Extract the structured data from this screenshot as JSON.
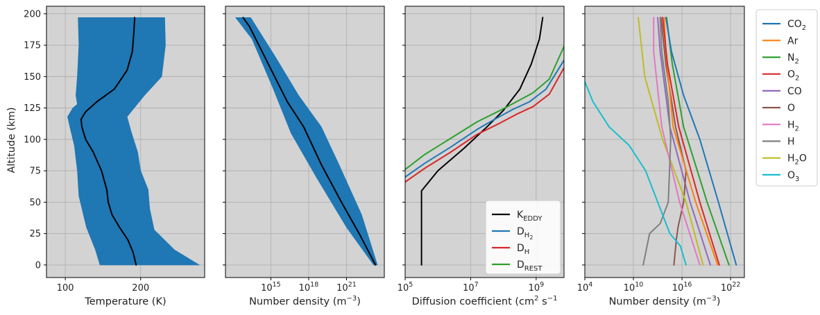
{
  "colors": {
    "blue": "#1f77b4",
    "orange": "#ff7f0e",
    "green": "#2ca02c",
    "red": "#d62728",
    "purple": "#9467bd",
    "brown": "#8c564b",
    "pink": "#e377c2",
    "gray": "#7f7f7f",
    "olive": "#bcbd22",
    "cyan": "#17becf",
    "black": "#000000",
    "panel_bg": "#d3d3d3",
    "grid": "#b0b0b0"
  },
  "chart_data": [
    {
      "type": "line",
      "xlabel": "Temperature (K)",
      "ylabel": "Altitude (km)",
      "xlim": [
        75,
        285
      ],
      "ylim": [
        -10,
        206
      ],
      "xticks": [
        {
          "v": 100,
          "label": "100"
        },
        {
          "v": 200,
          "label": "200"
        }
      ],
      "yticks": [
        {
          "v": 0,
          "label": "0"
        },
        {
          "v": 25,
          "label": "25"
        },
        {
          "v": 50,
          "label": "50"
        },
        {
          "v": 75,
          "label": "75"
        },
        {
          "v": 100,
          "label": "100"
        },
        {
          "v": 125,
          "label": "125"
        },
        {
          "v": 150,
          "label": "150"
        },
        {
          "v": 175,
          "label": "175"
        },
        {
          "v": 200,
          "label": "200"
        }
      ],
      "grid": true,
      "ensemble_envelope": {
        "color": "blue",
        "left": [
          [
            146,
            0
          ],
          [
            140,
            12
          ],
          [
            128,
            30
          ],
          [
            118,
            55
          ],
          [
            116,
            75
          ],
          [
            112,
            95
          ],
          [
            106,
            110
          ],
          [
            103,
            118
          ],
          [
            110,
            125
          ],
          [
            116,
            128
          ],
          [
            114,
            135
          ],
          [
            116,
            150
          ],
          [
            118,
            175
          ],
          [
            117,
            197
          ]
        ],
        "right": [
          [
            278,
            0
          ],
          [
            245,
            12
          ],
          [
            218,
            28
          ],
          [
            212,
            45
          ],
          [
            210,
            60
          ],
          [
            200,
            75
          ],
          [
            196,
            90
          ],
          [
            188,
            105
          ],
          [
            182,
            118
          ],
          [
            205,
            135
          ],
          [
            228,
            150
          ],
          [
            233,
            175
          ],
          [
            232,
            197
          ]
        ]
      },
      "series": [
        {
          "color": "black",
          "x": [
            194,
            190,
            183,
            172,
            162,
            157,
            155,
            148,
            137,
            127,
            122,
            121,
            127,
            142,
            165,
            182,
            189,
            191,
            192,
            192
          ],
          "y": [
            0,
            10,
            20,
            30,
            40,
            50,
            60,
            75,
            90,
            100,
            110,
            116,
            122,
            130,
            140,
            155,
            170,
            185,
            195,
            197
          ]
        }
      ]
    },
    {
      "type": "line",
      "xlabel": "Number density (m⁻³)",
      "xscale": "log",
      "xlim": [
        11.4,
        24.0
      ],
      "ylim": [
        -10,
        206
      ],
      "xticks": [
        {
          "v": 15,
          "base": "10",
          "exp": "15"
        },
        {
          "v": 18,
          "base": "10",
          "exp": "18"
        },
        {
          "v": 21,
          "base": "10",
          "exp": "21"
        }
      ],
      "grid": true,
      "ensemble_envelope": {
        "color": "blue",
        "left": [
          [
            23.15,
            0
          ],
          [
            21.0,
            30
          ],
          [
            18.6,
            70
          ],
          [
            16.6,
            105
          ],
          [
            15.2,
            140
          ],
          [
            13.5,
            180
          ],
          [
            12.2,
            197
          ]
        ],
        "right": [
          [
            23.45,
            0
          ],
          [
            22.2,
            40
          ],
          [
            20.4,
            80
          ],
          [
            19.0,
            110
          ],
          [
            17.2,
            135
          ],
          [
            15.4,
            165
          ],
          [
            13.4,
            197
          ]
        ]
      },
      "series": [
        {
          "color": "black",
          "x": [
            23.3,
            22.0,
            20.6,
            19.0,
            17.6,
            16.3,
            15.3,
            14.3,
            13.3,
            12.8
          ],
          "y": [
            0,
            25,
            50,
            80,
            110,
            130,
            150,
            170,
            190,
            197
          ]
        }
      ]
    },
    {
      "type": "line",
      "xlabel": "Diffusion coefficient (cm² s⁻¹",
      "xscale": "log",
      "xlim": [
        5,
        9.85
      ],
      "ylim": [
        -10,
        206
      ],
      "xticks": [
        {
          "v": 5,
          "base": "10",
          "exp": "5"
        },
        {
          "v": 7,
          "base": "10",
          "exp": "7"
        },
        {
          "v": 9,
          "base": "10",
          "exp": "9"
        }
      ],
      "grid": true,
      "legend": {
        "position": "lower-right",
        "entries": [
          {
            "color": "black",
            "text": "K",
            "sub": "EDDY"
          },
          {
            "color": "blue",
            "text": "D",
            "sub": "H",
            "subsub": "2"
          },
          {
            "color": "red",
            "text": "D",
            "sub": "H"
          },
          {
            "color": "green",
            "text": "D",
            "sub": "REST"
          }
        ]
      },
      "series": [
        {
          "color": "black",
          "label": "KEDDY",
          "x": [
            5.5,
            5.5,
            5.5,
            6.0,
            6.8,
            7.5,
            8.0,
            8.5,
            8.85,
            9.1,
            9.2
          ],
          "y": [
            0,
            30,
            59,
            75,
            93,
            110,
            123,
            140,
            160,
            180,
            197
          ]
        },
        {
          "color": "blue",
          "label": "DH2",
          "x": [
            5.0,
            5.6,
            6.4,
            7.2,
            7.8,
            8.3,
            8.8,
            9.3,
            9.85
          ],
          "y": [
            70,
            81,
            94,
            108,
            117,
            124,
            130,
            140,
            163
          ]
        },
        {
          "color": "red",
          "label": "DH",
          "x": [
            5.0,
            5.6,
            6.4,
            7.2,
            7.9,
            8.4,
            8.9,
            9.4,
            9.85
          ],
          "y": [
            66,
            77,
            90,
            104,
            113,
            120,
            126,
            136,
            157
          ]
        },
        {
          "color": "green",
          "label": "DREST",
          "x": [
            5.0,
            5.6,
            6.4,
            7.2,
            7.9,
            8.4,
            8.9,
            9.4,
            9.85
          ],
          "y": [
            76,
            88,
            101,
            114,
            123,
            130,
            137,
            148,
            174
          ]
        }
      ]
    },
    {
      "type": "line",
      "xlabel": "Number density (m⁻³)",
      "xscale": "log",
      "xlim": [
        4,
        23.7
      ],
      "ylim": [
        -10,
        206
      ],
      "xticks": [
        {
          "v": 4,
          "base": "10",
          "exp": "4"
        },
        {
          "v": 10,
          "base": "10",
          "exp": "10"
        },
        {
          "v": 16,
          "base": "10",
          "exp": "16"
        },
        {
          "v": 22,
          "base": "10",
          "exp": "22"
        }
      ],
      "grid": true,
      "legend": {
        "position": "outside-right",
        "entries": [
          {
            "color": "blue",
            "text": "CO",
            "subsub": "2"
          },
          {
            "color": "orange",
            "text": "Ar"
          },
          {
            "color": "green",
            "text": "N",
            "subsub": "2"
          },
          {
            "color": "red",
            "text": "O",
            "subsub": "2"
          },
          {
            "color": "purple",
            "text": "CO"
          },
          {
            "color": "brown",
            "text": "O"
          },
          {
            "color": "pink",
            "text": "H",
            "subsub": "2"
          },
          {
            "color": "gray",
            "text": "H"
          },
          {
            "color": "olive",
            "text": "H",
            "subsub": "2",
            "tail": "O"
          },
          {
            "color": "cyan",
            "text": "O",
            "subsub": "3"
          }
        ]
      },
      "series": [
        {
          "color": "purple",
          "label": "CO",
          "x": [
            19.5,
            17.0,
            14.5,
            13.3,
            13.0
          ],
          "y": [
            0,
            50,
            110,
            170,
            197
          ]
        },
        {
          "color": "brown",
          "label": "O",
          "x": [
            15.0,
            15.3,
            15.5,
            16.2,
            16.5,
            15.2,
            14.0,
            13.4
          ],
          "y": [
            0,
            20,
            30,
            50,
            75,
            110,
            160,
            197
          ]
        },
        {
          "color": "orange",
          "label": "Ar",
          "x": [
            20.4,
            17.7,
            14.9,
            14.0,
            13.8
          ],
          "y": [
            0,
            50,
            110,
            170,
            197
          ]
        },
        {
          "color": "olive",
          "label": "H2O",
          "x": [
            18.6,
            16.5,
            13.6,
            11.4,
            10.6
          ],
          "y": [
            0,
            50,
            100,
            150,
            197
          ]
        },
        {
          "color": "pink",
          "label": "H2",
          "x": [
            18.2,
            15.7,
            13.5,
            12.5,
            12.5
          ],
          "y": [
            0,
            50,
            110,
            170,
            197
          ]
        },
        {
          "color": "gray",
          "label": "H",
          "x": [
            11.2,
            12.0,
            13.3,
            14.3,
            14.6,
            14.3,
            13.5,
            13.3
          ],
          "y": [
            0,
            25,
            33,
            50,
            100,
            130,
            170,
            197
          ]
        },
        {
          "color": "cyan",
          "label": "O3",
          "x": [
            16.5,
            15.8,
            14.5,
            13.0,
            11.5,
            9.5,
            7.0,
            5.0,
            4.0
          ],
          "y": [
            0,
            15,
            25,
            50,
            75,
            95,
            110,
            130,
            146
          ]
        },
        {
          "color": "red",
          "label": "O2",
          "x": [
            20.6,
            18.2,
            15.6,
            14.2,
            13.6
          ],
          "y": [
            0,
            50,
            110,
            160,
            197
          ]
        },
        {
          "color": "green",
          "label": "N2",
          "x": [
            21.8,
            19.1,
            16.2,
            14.8,
            14.1
          ],
          "y": [
            0,
            50,
            110,
            160,
            197
          ]
        },
        {
          "color": "blue",
          "label": "CO2",
          "x": [
            22.7,
            20.5,
            18.2,
            16.2,
            14.7,
            14.0
          ],
          "y": [
            0,
            50,
            100,
            135,
            170,
            197
          ]
        }
      ]
    }
  ]
}
